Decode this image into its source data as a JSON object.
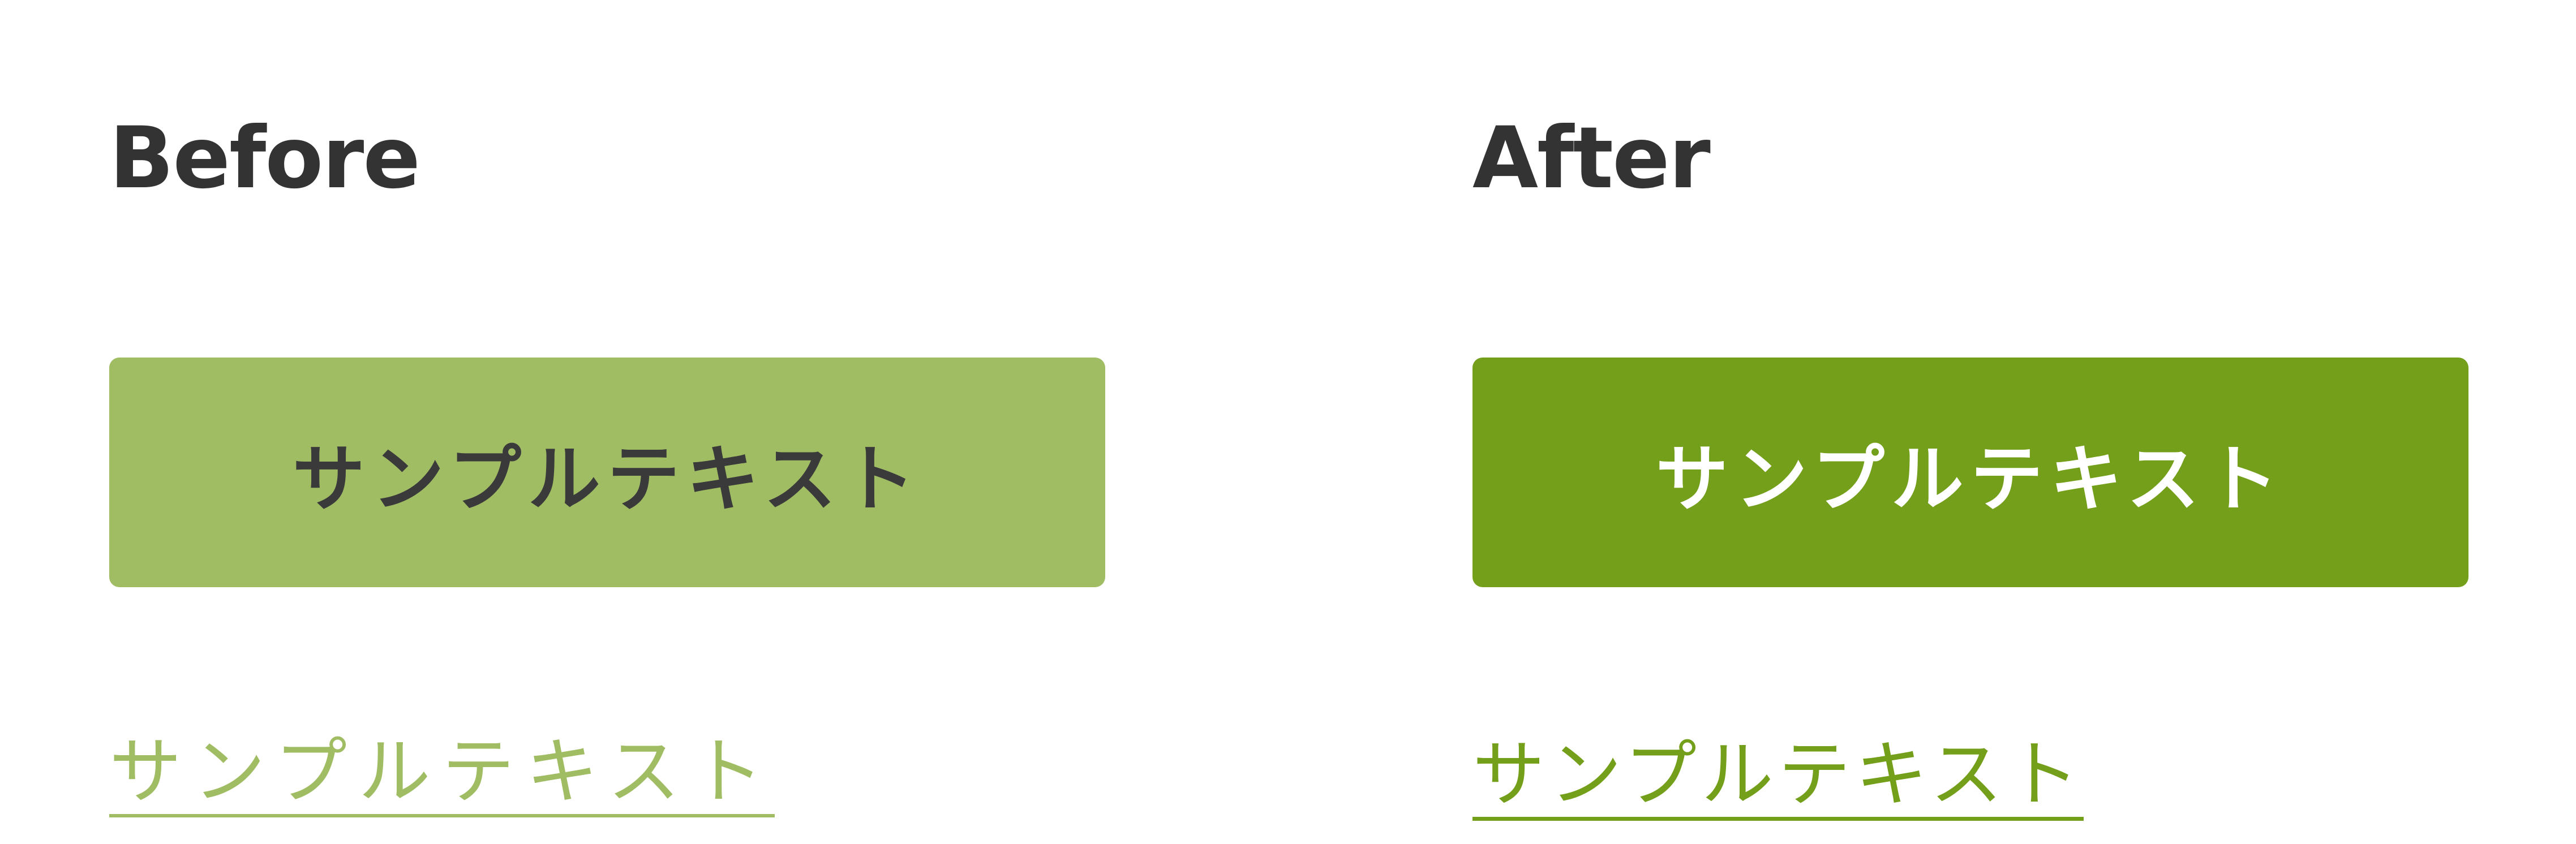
{
  "before": {
    "heading": "Before",
    "button_label": "サンプルテキスト",
    "link_label": "サンプルテキスト",
    "colors": {
      "button_bg": "#a0bd64",
      "button_text": "#3a3a3a",
      "link": "#a0bd64"
    }
  },
  "after": {
    "heading": "After",
    "button_label": "サンプルテキスト",
    "link_label": "サンプルテキスト",
    "colors": {
      "button_bg": "#749f1a",
      "button_text": "#ffffff",
      "link": "#749f1a"
    }
  },
  "colors": {
    "heading_text": "#333333",
    "background": "#ffffff"
  }
}
